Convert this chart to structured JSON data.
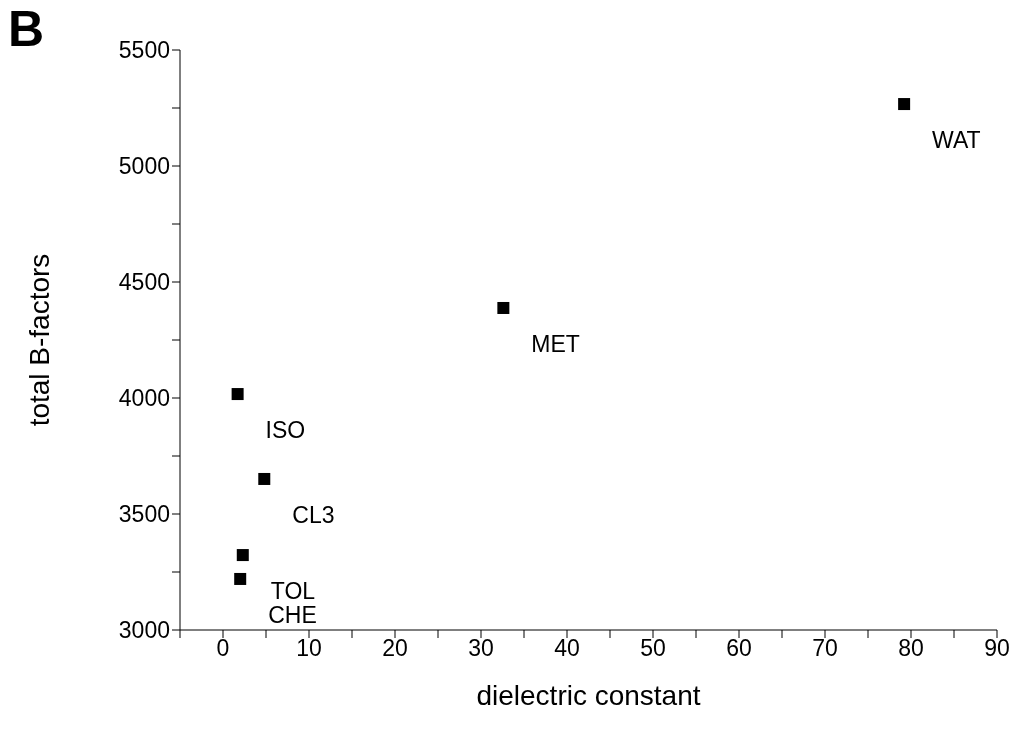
{
  "chart_data": {
    "type": "scatter",
    "title": "B",
    "xlabel": "dielectric constant",
    "ylabel": "total B-factors",
    "x": [
      1.7,
      4.8,
      2.3,
      2.0,
      32.6,
      79.2
    ],
    "values": [
      4017,
      3651,
      3323,
      3220,
      4388,
      5267
    ],
    "color": "#000000",
    "marker": "square",
    "grid": false,
    "legend": false,
    "xlim": [
      -5,
      90
    ],
    "xticks": [
      {
        "value": -5,
        "label": null
      },
      0,
      {
        "value": 5,
        "label": null
      },
      10,
      {
        "value": 15,
        "label": null
      },
      20,
      {
        "value": 25,
        "label": null
      },
      30,
      {
        "value": 35,
        "label": null
      },
      40,
      {
        "value": 45,
        "label": null
      },
      50,
      {
        "value": 55,
        "label": null
      },
      60,
      {
        "value": 65,
        "label": null
      },
      70,
      {
        "value": 75,
        "label": null
      },
      80,
      {
        "value": 85,
        "label": null
      },
      90
    ],
    "ylim": [
      3000,
      5500
    ],
    "yticks": [
      3000,
      {
        "value": 3250,
        "label": null
      },
      3500,
      {
        "value": 3750,
        "label": null
      },
      4000,
      {
        "value": 4250,
        "label": null
      },
      4500,
      {
        "value": 4750,
        "label": null
      },
      5000,
      {
        "value": 5250,
        "label": null
      },
      5500
    ],
    "annotations": [
      {
        "text": "ISO",
        "x": 1.7,
        "y": 4017
      },
      {
        "text": "CL3",
        "x": 4.8,
        "y": 3651
      },
      {
        "text": "TOL",
        "x": 2.3,
        "y": 3323
      },
      {
        "text": "CHE",
        "x": 2.0,
        "y": 3220
      },
      {
        "text": "MET",
        "x": 32.6,
        "y": 4388
      },
      {
        "text": "WAT",
        "x": 79.2,
        "y": 5267
      }
    ]
  }
}
